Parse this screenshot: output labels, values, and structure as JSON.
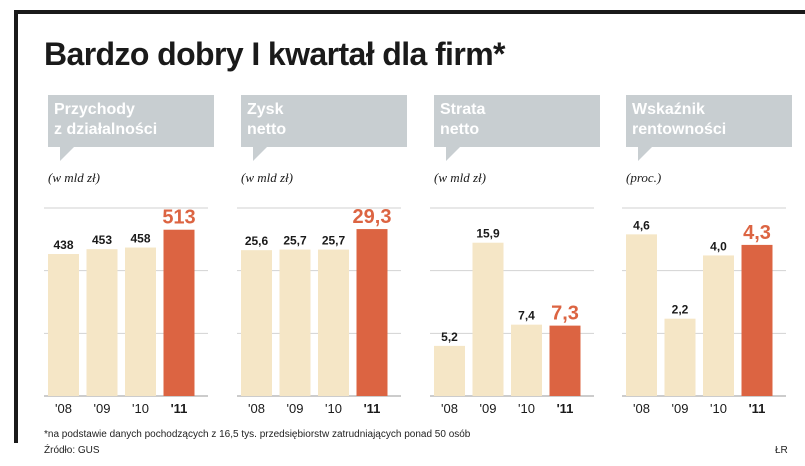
{
  "title": "Bardzo dobry I kwartał dla firm*",
  "footnote": "*na podstawie danych pochodzących z 16,5 tys. przedsiębiorstw zatrudniających ponad 50 osób",
  "source": "Źródło: GUS",
  "credit": "ŁR",
  "colors": {
    "bar": "#f5e6c6",
    "highlight": "#dc6442",
    "header": "#c8ced1",
    "grid": "#d2d2d2"
  },
  "chart_data": [
    {
      "type": "bar",
      "title": "Przychody z działalności",
      "title_lines": [
        "Przychody",
        "z działalności"
      ],
      "ylabel": "(w mld zł)",
      "categories": [
        "'08",
        "'09",
        "'10",
        "'11"
      ],
      "values": [
        438,
        453,
        458,
        513
      ],
      "labels": [
        "438",
        "453",
        "458",
        "513"
      ],
      "ylim": [
        0,
        580
      ]
    },
    {
      "type": "bar",
      "title": "Zysk netto",
      "title_lines": [
        "Zysk",
        "netto"
      ],
      "ylabel": "(w mld zł)",
      "categories": [
        "'08",
        "'09",
        "'10",
        "'11"
      ],
      "values": [
        25.6,
        25.7,
        25.7,
        29.3
      ],
      "labels": [
        "25,6",
        "25,7",
        "25,7",
        "29,3"
      ],
      "ylim": [
        0,
        33
      ]
    },
    {
      "type": "bar",
      "title": "Strata netto",
      "title_lines": [
        "Strata",
        "netto"
      ],
      "ylabel": "(w mld zł)",
      "categories": [
        "'08",
        "'09",
        "'10",
        "'11"
      ],
      "values": [
        5.2,
        15.9,
        7.4,
        7.3
      ],
      "labels": [
        "5,2",
        "15,9",
        "7,4",
        "7,3"
      ],
      "ylim": [
        0,
        19.5
      ]
    },
    {
      "type": "bar",
      "title": "Wskaźnik rentowności",
      "title_lines": [
        "Wskaźnik",
        "rentowności"
      ],
      "ylabel": "(proc.)",
      "categories": [
        "'08",
        "'09",
        "'10",
        "'11"
      ],
      "values": [
        4.6,
        2.2,
        4.0,
        4.3
      ],
      "labels": [
        "4,6",
        "2,2",
        "4,0",
        "4,3"
      ],
      "ylim": [
        0,
        5.35
      ]
    }
  ]
}
